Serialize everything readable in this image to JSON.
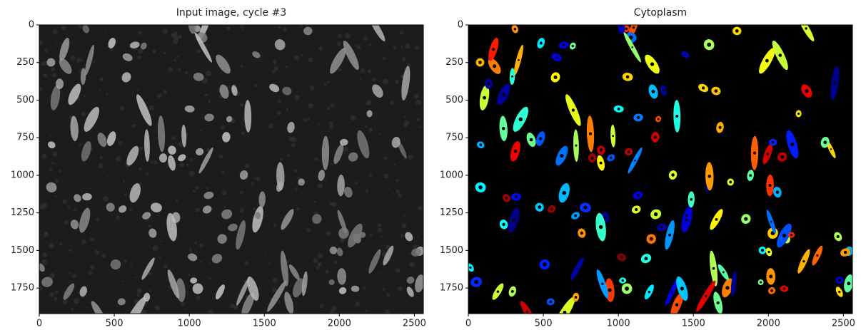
{
  "chart_data": [
    {
      "type": "image",
      "title": "Input image, cycle #3",
      "xlim": [
        0,
        2560
      ],
      "ylim": [
        1920,
        0
      ],
      "xticks": [
        0,
        500,
        1000,
        1500,
        2000,
        2500
      ],
      "yticks": [
        0,
        250,
        500,
        750,
        1000,
        1250,
        1500,
        1750
      ],
      "colormap": "gray"
    },
    {
      "type": "image",
      "title": "Cytoplasm",
      "xlim": [
        0,
        2560
      ],
      "ylim": [
        1920,
        0
      ],
      "xticks": [
        0,
        500,
        1000,
        1500,
        2000,
        2500
      ],
      "yticks": [
        0,
        250,
        500,
        750,
        1000,
        1250,
        1500,
        1750
      ],
      "colormap": "jet"
    }
  ]
}
